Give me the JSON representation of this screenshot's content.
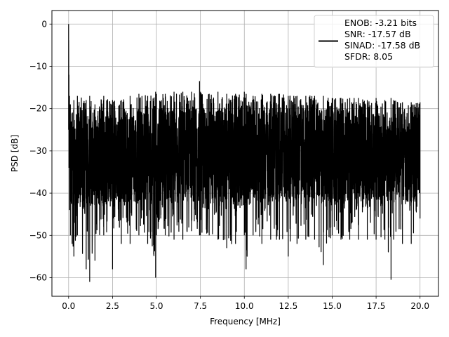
{
  "chart_data": {
    "type": "line",
    "title": "",
    "xlabel": "Frequency [MHz]",
    "ylabel": "PSD [dB]",
    "xlim": [
      -0.95,
      21.05
    ],
    "ylim": [
      -64.4,
      3.2
    ],
    "xticks": [
      0.0,
      2.5,
      5.0,
      7.5,
      10.0,
      12.5,
      15.0,
      17.5,
      20.0
    ],
    "xtick_labels": [
      "0.0",
      "2.5",
      "5.0",
      "7.5",
      "10.0",
      "12.5",
      "15.0",
      "17.5",
      "20.0"
    ],
    "yticks": [
      0,
      -10,
      -20,
      -30,
      -40,
      -50,
      -60
    ],
    "ytick_labels": [
      "0",
      "−10",
      "−20",
      "−30",
      "−40",
      "−50",
      "−60"
    ],
    "grid": true,
    "legend_placement": "upper-right",
    "legend_lines": [
      "ENOB: -3.21 bits",
      "SNR: -17.57 dB",
      "SINAD: -17.58 dB",
      "SFDR: 8.05"
    ],
    "series": [
      {
        "color": "#000000",
        "x": [
          0.0,
          0.02,
          0.05,
          0.1,
          0.2,
          0.3,
          0.5,
          1.0,
          1.2,
          1.5,
          2.0,
          2.5,
          3.0,
          3.5,
          4.0,
          4.5,
          4.95,
          5.0,
          5.5,
          6.0,
          6.5,
          7.0,
          7.45,
          7.5,
          8.0,
          8.5,
          9.0,
          9.5,
          10.0,
          10.1,
          10.5,
          11.0,
          11.5,
          12.0,
          12.5,
          13.0,
          13.5,
          14.0,
          14.5,
          15.0,
          15.5,
          16.0,
          16.5,
          17.0,
          17.5,
          18.0,
          18.35,
          18.5,
          19.0,
          19.5,
          20.0
        ],
        "y_upper": [
          0.0,
          -12,
          -17,
          -19,
          -21,
          -18,
          -17,
          -18,
          -17,
          -19,
          -17,
          -18,
          -18,
          -17,
          -16.5,
          -17,
          -16,
          -16.5,
          -16.5,
          -16,
          -16,
          -16,
          -13.5,
          -16,
          -16.5,
          -16,
          -16.5,
          -16.5,
          -16,
          -16.5,
          -17,
          -16.5,
          -16.5,
          -16.5,
          -17,
          -17,
          -17,
          -17,
          -17,
          -17.5,
          -17.5,
          -17.5,
          -17.5,
          -18,
          -17.5,
          -18,
          -17.5,
          -18,
          -18.5,
          -18.5,
          -18.5
        ],
        "y_body_top": [
          0.0,
          -15,
          -21,
          -22,
          -22,
          -21,
          -21,
          -21,
          -21,
          -21,
          -21,
          -21,
          -21,
          -20,
          -20,
          -20,
          -20,
          -20,
          -20,
          -20,
          -20,
          -20,
          -20,
          -20,
          -20,
          -20,
          -20,
          -20,
          -20,
          -20,
          -20,
          -20,
          -20,
          -20,
          -20,
          -20,
          -20,
          -20,
          -20,
          -20,
          -20,
          -20,
          -20,
          -20,
          -21,
          -21,
          -21,
          -21,
          -21,
          -21,
          -21
        ],
        "y_body_bottom": [
          -25,
          -32,
          -38,
          -42,
          -43,
          -43,
          -43,
          -43,
          -43,
          -43,
          -43,
          -43,
          -42,
          -42,
          -42,
          -42,
          -42,
          -42,
          -42,
          -42,
          -42,
          -42,
          -42,
          -42,
          -42,
          -42,
          -42,
          -42,
          -42,
          -42,
          -42,
          -42,
          -42,
          -42,
          -42,
          -42,
          -42,
          -42,
          -42,
          -42,
          -42,
          -42,
          -42,
          -42,
          -42,
          -42,
          -42,
          -43,
          -43,
          -43,
          -38
        ],
        "y_lower": [
          -25,
          -34,
          -44,
          -50,
          -52,
          -55,
          -50,
          -58,
          -61,
          -56,
          -50,
          -58,
          -52,
          -52,
          -50,
          -52,
          -60,
          -50,
          -50,
          -51,
          -51,
          -49,
          -50,
          -50,
          -50,
          -51,
          -53,
          -52,
          -50,
          -58,
          -50,
          -52,
          -51,
          -51,
          -55,
          -52,
          -51,
          -51,
          -57,
          -50,
          -51,
          -51,
          -51,
          -51,
          -51,
          -51,
          -60.5,
          -51,
          -52,
          -52,
          -46
        ]
      }
    ]
  }
}
